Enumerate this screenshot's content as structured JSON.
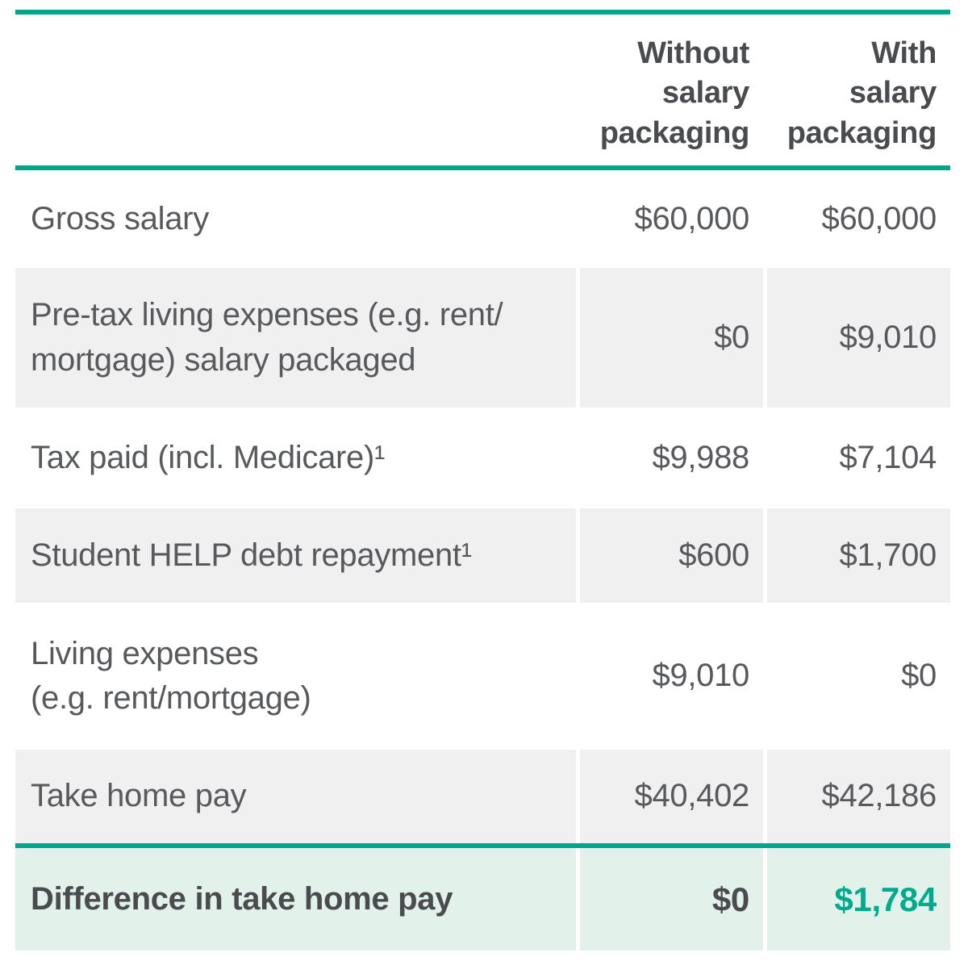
{
  "meta": {
    "accent_teal": "#00A68C",
    "teal_value": "#00AB8D",
    "row_alt_bg": "#F0F0F0",
    "total_row_bg": "#E3F1EB",
    "body_text": "#58595D",
    "bold_text": "#4A4B4F"
  },
  "header": {
    "without_label": "Without\nsalary\npackaging",
    "with_label": "With\nsalary\npackaging"
  },
  "rows": [
    {
      "label": "Gross salary",
      "without": "$60,000",
      "with": "$60,000"
    },
    {
      "label": "Pre-tax living expenses (e.g. rent/\nmortgage) salary packaged",
      "without": "$0",
      "with": "$9,010"
    },
    {
      "label": "Tax paid (incl. Medicare)¹",
      "without": "$9,988",
      "with": "$7,104"
    },
    {
      "label": "Student HELP debt repayment¹",
      "without": "$600",
      "with": "$1,700"
    },
    {
      "label": "Living expenses\n(e.g. rent/mortgage)",
      "without": "$9,010",
      "with": "$0"
    },
    {
      "label": "Take home pay",
      "without": "$40,402",
      "with": "$42,186"
    }
  ],
  "total_row": {
    "label": "Difference in take home pay",
    "without": "$0",
    "with": "$1,784"
  },
  "chart_data": {
    "type": "table",
    "columns": [
      "",
      "Without salary packaging",
      "With salary packaging"
    ],
    "rows": [
      [
        "Gross salary",
        "$60,000",
        "$60,000"
      ],
      [
        "Pre-tax living expenses (e.g. rent/mortgage) salary packaged",
        "$0",
        "$9,010"
      ],
      [
        "Tax paid (incl. Medicare)¹",
        "$9,988",
        "$7,104"
      ],
      [
        "Student HELP debt repayment¹",
        "$600",
        "$1,700"
      ],
      [
        "Living expenses (e.g. rent/mortgage)",
        "$9,010",
        "$0"
      ],
      [
        "Take home pay",
        "$40,402",
        "$42,186"
      ],
      [
        "Difference in take home pay",
        "$0",
        "$1,784"
      ]
    ],
    "notes": "Superscript 1 footnote markers appear on tax and HELP repayment rows; no footnote text visible in image."
  }
}
